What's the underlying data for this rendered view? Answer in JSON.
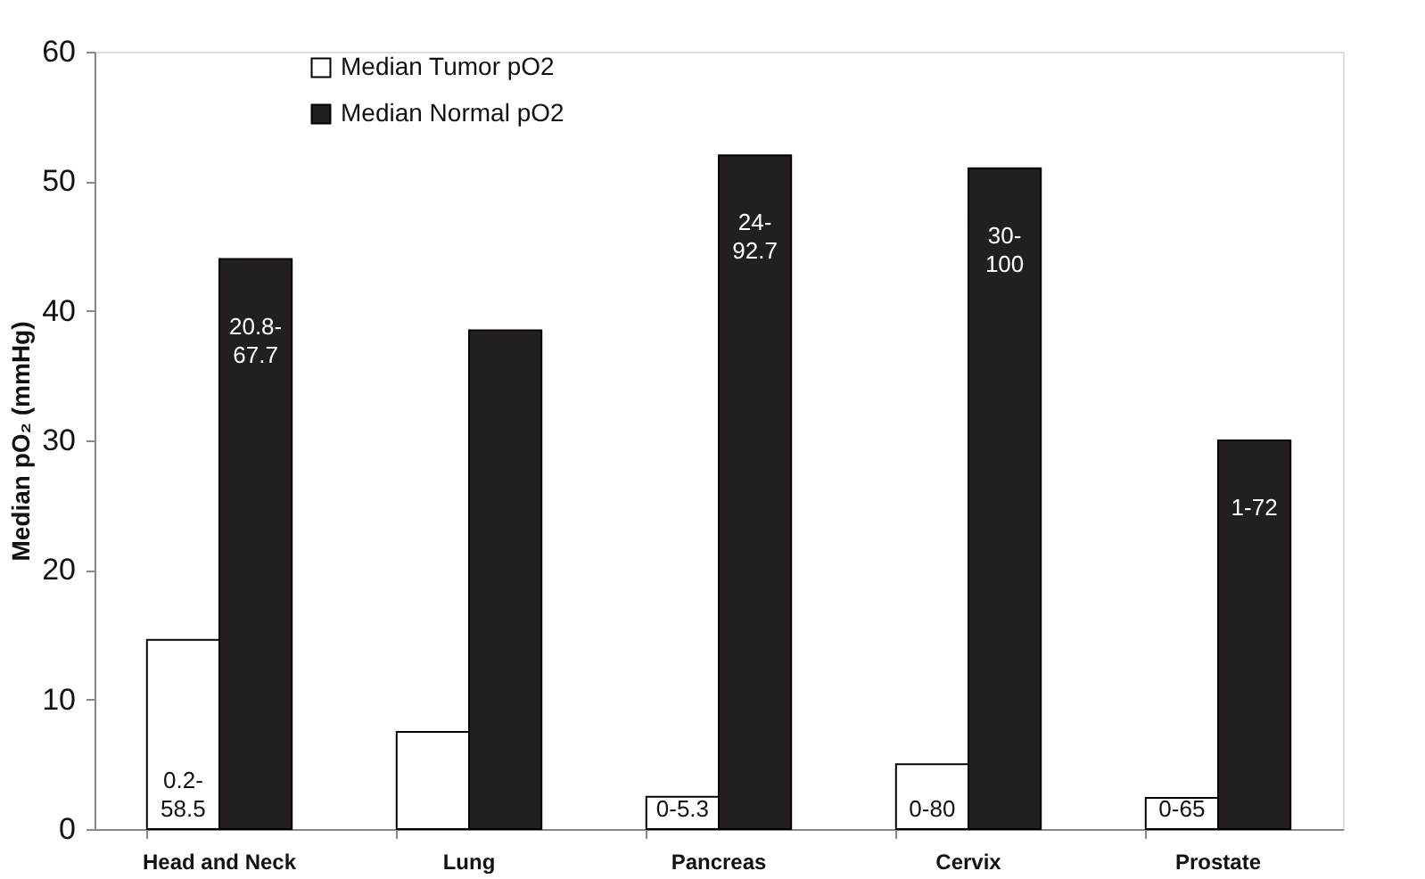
{
  "chart_data": {
    "type": "bar",
    "ylabel": "Median pO₂ (mmHg)",
    "categories": [
      "Head and Neck",
      "Lung",
      "Pancreas",
      "Cervix",
      "Prostate"
    ],
    "series": [
      {
        "name": "Median Tumor pO2",
        "color": "#ffffff",
        "values": [
          14.6,
          7.5,
          2.5,
          5,
          2.4
        ],
        "value_labels": [
          "0.2-\n58.5",
          null,
          "0-5.3",
          "0-80",
          "0-65"
        ]
      },
      {
        "name": "Median Normal pO2",
        "color": "#231f20",
        "values": [
          44,
          38.5,
          52,
          51,
          30
        ],
        "value_labels": [
          "20.8-\n67.7",
          null,
          "24-\n92.7",
          "30-\n100",
          "1-72"
        ]
      }
    ],
    "ylim": [
      0,
      60
    ],
    "yticks": [
      0,
      10,
      20,
      30,
      40,
      50,
      60
    ],
    "grid": false,
    "legend": "top left"
  }
}
